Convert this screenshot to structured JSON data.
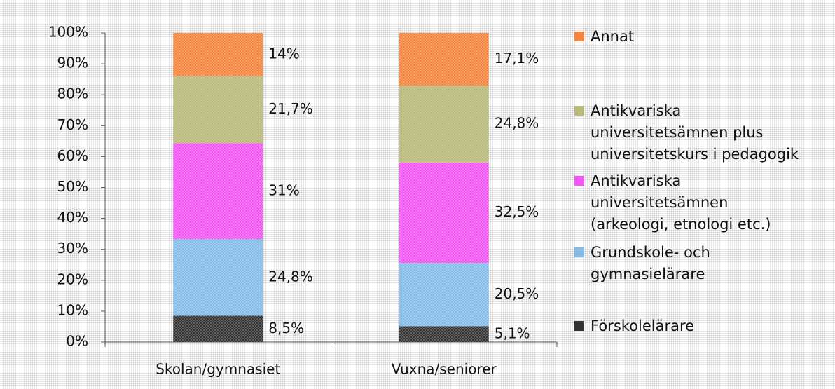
{
  "chart_data": {
    "type": "stacked_bar",
    "categories": [
      "Skolan/gymnasiet",
      "Vuxna/seniorer"
    ],
    "series": [
      {
        "name": "Förskolelärare",
        "color": "#333333",
        "values": [
          8.5,
          5.1
        ],
        "value_labels": [
          "8,5%",
          "5,1%"
        ]
      },
      {
        "name": "Grundskole- och gymnasielärare",
        "color": "#84bce8",
        "values": [
          24.8,
          20.5
        ],
        "value_labels": [
          "24,8%",
          "20,5%"
        ]
      },
      {
        "name": "Antikvariska universitetsämnen (arkeologi, etnologi etc.)",
        "color": "#f255f2",
        "values": [
          31,
          32.5
        ],
        "value_labels": [
          "31%",
          "32,5%"
        ]
      },
      {
        "name": "Antikvariska universitetsämnen plus universitetskurs i pedagogik",
        "color": "#b9b97a",
        "values": [
          21.7,
          24.8
        ],
        "value_labels": [
          "21,7%",
          "24,8%"
        ]
      },
      {
        "name": "Annat",
        "color": "#f5843e",
        "values": [
          14,
          17.1
        ],
        "value_labels": [
          "14%",
          "17,1%"
        ]
      }
    ],
    "ylim": [
      0,
      100
    ],
    "yticks": [
      {
        "value": 0,
        "label": "0%"
      },
      {
        "value": 10,
        "label": "10%"
      },
      {
        "value": 20,
        "label": "20%"
      },
      {
        "value": 30,
        "label": "30%"
      },
      {
        "value": 40,
        "label": "40%"
      },
      {
        "value": 50,
        "label": "50%"
      },
      {
        "value": 60,
        "label": "60%"
      },
      {
        "value": 70,
        "label": "70%"
      },
      {
        "value": 80,
        "label": "80%"
      },
      {
        "value": 90,
        "label": "90%"
      },
      {
        "value": 100,
        "label": "100%"
      }
    ],
    "legend": "right"
  }
}
